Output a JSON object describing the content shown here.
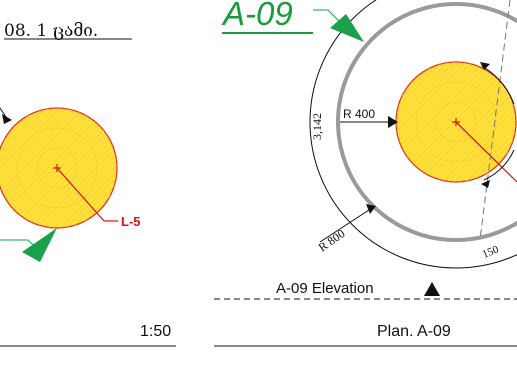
{
  "left_view": {
    "header_text": "08. 1 ცამი.",
    "leader_label": "L-5",
    "scale_text": "1:50"
  },
  "right_view": {
    "title": "A-09",
    "radius_inner_label": "R 400",
    "radius_outer_label": "R 800",
    "dimension_label": "3,142",
    "angle_label": "150",
    "section_marker_label": "A-09 Elevation",
    "caption": "Plan. A-09"
  },
  "colors": {
    "title_green": "#1a9a3a",
    "arrow_green": "#1aa04a",
    "circle_fill": "#ffe03a",
    "circle_stroke": "#e0381a",
    "leader_red": "#e01010",
    "ring_grey": "#9a9a9a",
    "line_black": "#111111"
  }
}
